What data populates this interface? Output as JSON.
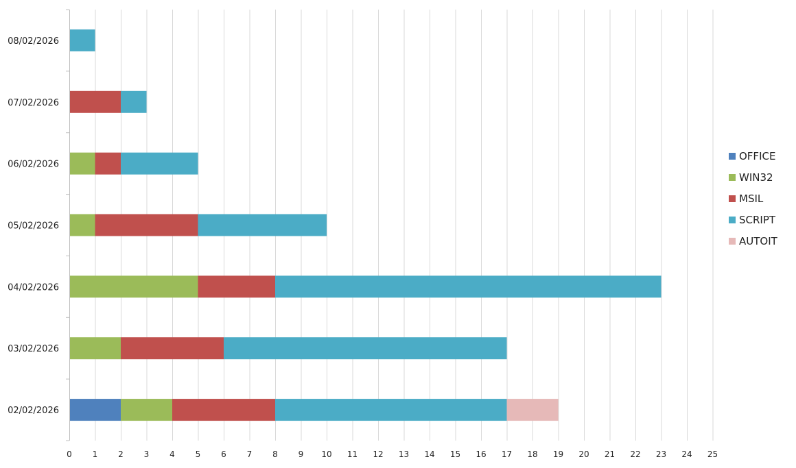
{
  "chart_data": {
    "type": "bar",
    "orientation": "horizontal",
    "stacked": true,
    "categories": [
      "02/02/2026",
      "03/02/2026",
      "04/02/2026",
      "05/02/2026",
      "06/02/2026",
      "07/02/2026",
      "08/02/2026"
    ],
    "series": [
      {
        "name": "OFFICE",
        "color": "#4F81BD",
        "values": [
          2,
          0,
          0,
          0,
          0,
          0,
          0
        ]
      },
      {
        "name": "WIN32",
        "color": "#9BBB59",
        "values": [
          2,
          2,
          5,
          1,
          1,
          0,
          0
        ]
      },
      {
        "name": "MSIL",
        "color": "#C0504D",
        "values": [
          4,
          4,
          3,
          4,
          1,
          2,
          0
        ]
      },
      {
        "name": "SCRIPT",
        "color": "#4BACC6",
        "values": [
          9,
          11,
          15,
          5,
          3,
          1,
          1
        ]
      },
      {
        "name": "AUTOIT",
        "color": "#E6B9B8",
        "values": [
          2,
          0,
          0,
          0,
          0,
          0,
          0
        ]
      }
    ],
    "xlim": [
      0,
      25
    ],
    "xticks": [
      "0",
      "1",
      "2",
      "3",
      "4",
      "5",
      "6",
      "7",
      "8",
      "9",
      "10",
      "11",
      "12",
      "13",
      "14",
      "15",
      "16",
      "17",
      "18",
      "19",
      "20",
      "21",
      "22",
      "23",
      "24",
      "25"
    ],
    "grid": "vertical",
    "legend_position": "right",
    "title": "",
    "xlabel": "",
    "ylabel": ""
  }
}
